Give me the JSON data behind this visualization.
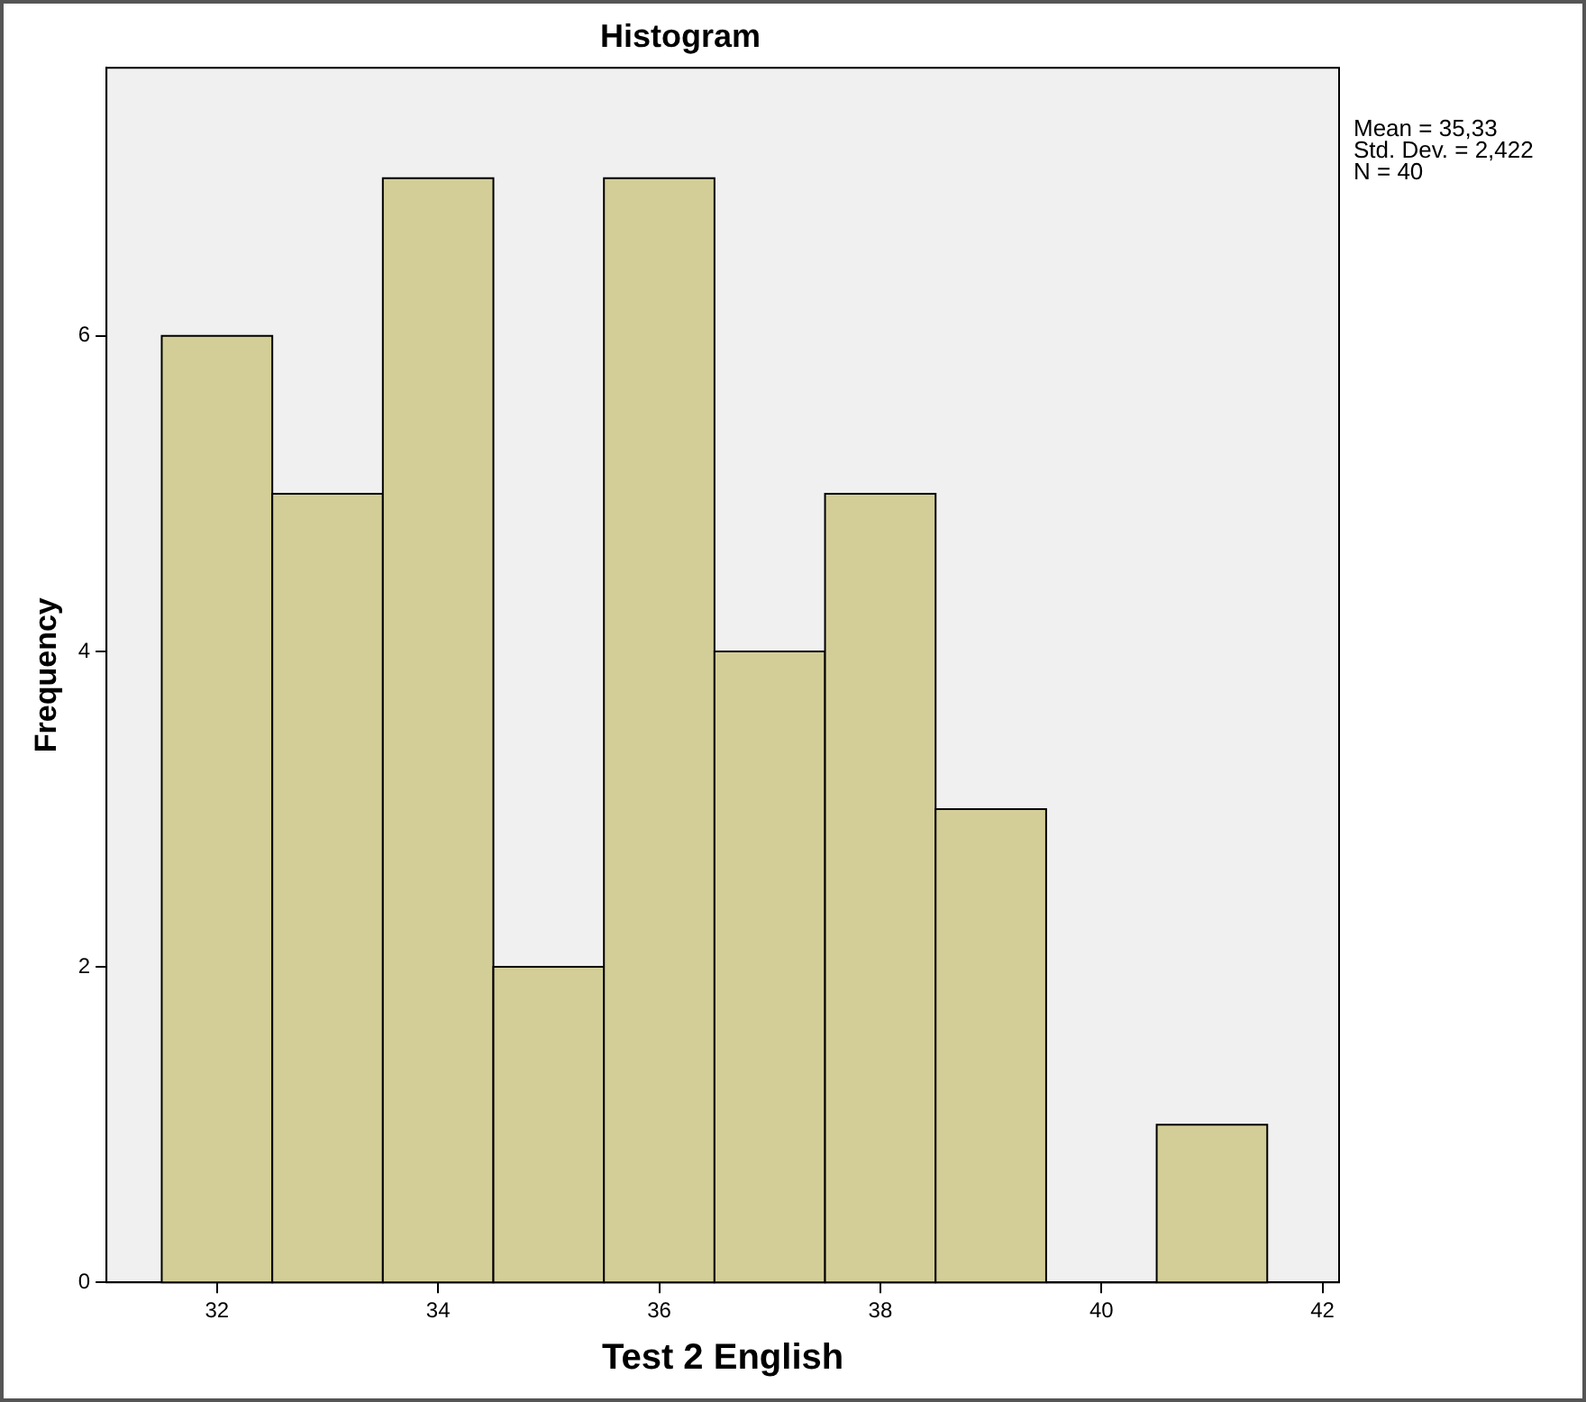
{
  "chart_data": {
    "type": "histogram",
    "title": "Histogram",
    "xlabel": "Test 2 English",
    "ylabel": "Frequency",
    "bins": [
      31.5,
      32.5,
      33.5,
      34.5,
      35.5,
      36.5,
      37.5,
      38.5,
      39.5,
      40.5,
      41.5
    ],
    "values": [
      6,
      5,
      7,
      2,
      7,
      4,
      5,
      3,
      0,
      1
    ],
    "color": "#d3ce97",
    "xlim": [
      31,
      42.15
    ],
    "xticks": [
      32,
      34,
      36,
      38,
      40,
      42
    ],
    "ylim": [
      0,
      7.7
    ],
    "yticks": [
      0,
      2,
      4,
      6
    ],
    "grid": false,
    "legend": false,
    "annotations": [
      "Mean = 35,33",
      "Std. Dev. = 2,422",
      "N = 40"
    ]
  }
}
